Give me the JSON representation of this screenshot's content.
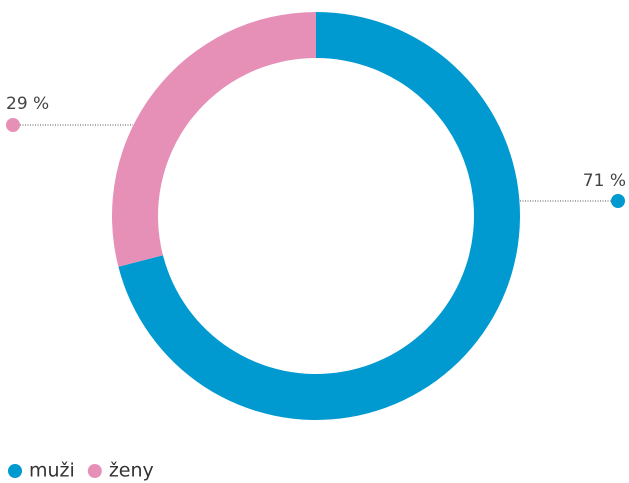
{
  "chart_data": {
    "type": "donut",
    "categories": [
      "muži",
      "ženy"
    ],
    "values": [
      71,
      29
    ],
    "value_labels": [
      "71 %",
      "29 %"
    ],
    "colors": [
      "#0099d0",
      "#e690b8"
    ]
  }
}
